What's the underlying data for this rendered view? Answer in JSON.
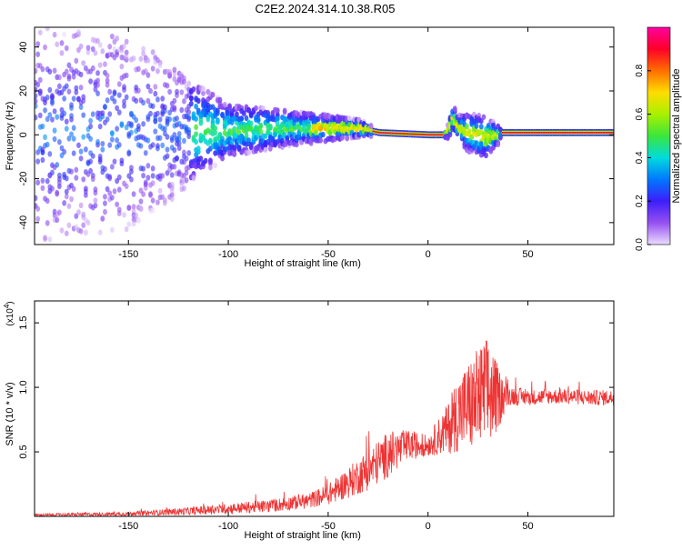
{
  "title": "C2E2.2024.314.10.38.R05",
  "chart_data": [
    {
      "type": "heatmap",
      "title": "C2E2.2024.314.10.38.R05",
      "xlabel": "Height of straight line (km)",
      "ylabel": "Frequency (Hz)",
      "xlim": [
        -197,
        93
      ],
      "ylim": [
        -50,
        49
      ],
      "x_ticks": [
        -150,
        -100,
        -50,
        0,
        50
      ],
      "y_ticks": [
        -40,
        -20,
        0,
        20,
        40
      ],
      "colorbar": {
        "label": "Normalized spectral amplitude",
        "range": [
          0,
          1
        ],
        "ticks": [
          "0.0",
          "0.2",
          "0.4",
          "0.6",
          "0.8"
        ],
        "tick_values": [
          0,
          0.2,
          0.4,
          0.6,
          0.8
        ]
      },
      "ridge": {
        "description": "narrowband signal near 0 Hz, broadening and noisier toward negative heights",
        "x": [
          -197,
          -150,
          -100,
          -70,
          -50,
          -35,
          -25,
          0,
          8,
          10,
          12,
          15,
          20,
          28,
          35,
          36,
          93
        ],
        "center_hz": [
          0,
          1,
          2,
          3,
          3,
          3,
          1,
          0,
          0,
          2,
          8,
          3,
          1,
          -1,
          0,
          1,
          1
        ],
        "halfwidth_hz": [
          45,
          40,
          12,
          8,
          6,
          4,
          1.5,
          1.2,
          1.2,
          4,
          6,
          6,
          9,
          10,
          4,
          2,
          1.8
        ]
      }
    },
    {
      "type": "line",
      "xlabel": "Height of straight line (km)",
      "ylabel": "SNR (10 * v/v)",
      "y_multiplier_label": "(x10",
      "y_multiplier_exp": "4",
      "y_multiplier_close": ")",
      "xlim": [
        -197,
        93
      ],
      "ylim": [
        0.0,
        1.67
      ],
      "x_ticks": [
        -150,
        -100,
        -50,
        0,
        50
      ],
      "y_ticks": [
        0.5,
        1.0,
        1.5
      ],
      "color": "#ee3333",
      "series": [
        {
          "name": "SNR",
          "x": [
            -197,
            -150,
            -120,
            -100,
            -80,
            -60,
            -50,
            -40,
            -30,
            -20,
            -10,
            0,
            10,
            15,
            20,
            25,
            30,
            35,
            40,
            50,
            60,
            70,
            80,
            93
          ],
          "y": [
            0.01,
            0.02,
            0.04,
            0.06,
            0.08,
            0.12,
            0.17,
            0.26,
            0.36,
            0.48,
            0.55,
            0.55,
            0.68,
            0.8,
            0.85,
            0.9,
            0.95,
            0.92,
            0.94,
            0.92,
            0.93,
            0.93,
            0.92,
            0.92
          ],
          "noise": [
            0.01,
            0.015,
            0.03,
            0.04,
            0.05,
            0.06,
            0.08,
            0.12,
            0.16,
            0.18,
            0.12,
            0.08,
            0.2,
            0.3,
            0.35,
            0.42,
            0.45,
            0.25,
            0.08,
            0.06,
            0.06,
            0.06,
            0.06,
            0.06
          ]
        }
      ]
    }
  ]
}
